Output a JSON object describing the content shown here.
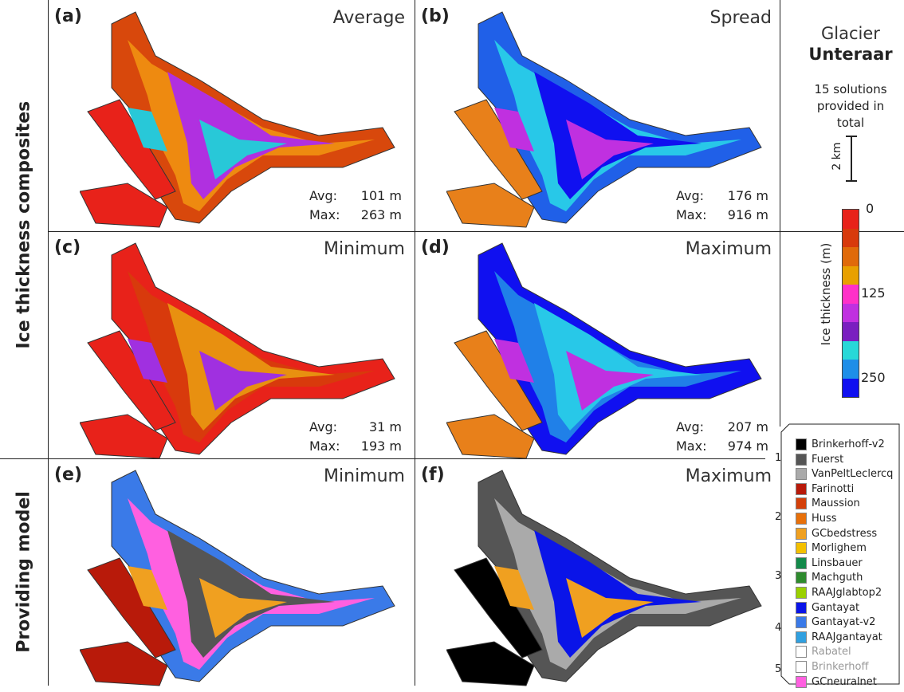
{
  "row_labels": {
    "top": "Ice thickness composites",
    "bottom": "Providing model"
  },
  "panels": [
    {
      "letter": "(a)",
      "title": "Average",
      "avg_label": "Avg:",
      "avg": "101 m",
      "max_label": "Max:",
      "max": "263 m"
    },
    {
      "letter": "(b)",
      "title": "Spread",
      "avg_label": "Avg:",
      "avg": "176 m",
      "max_label": "Max:",
      "max": "916 m"
    },
    {
      "letter": "(c)",
      "title": "Minimum",
      "avg_label": "Avg:",
      "avg": "31 m",
      "max_label": "Max:",
      "max": "193 m"
    },
    {
      "letter": "(d)",
      "title": "Maximum",
      "avg_label": "Avg:",
      "avg": "207 m",
      "max_label": "Max:",
      "max": "974 m"
    },
    {
      "letter": "(e)",
      "title": "Minimum"
    },
    {
      "letter": "(f)",
      "title": "Maximum"
    }
  ],
  "glacier": {
    "line1": "Glacier",
    "line2": "Unteraar",
    "solutions": "15 solutions provided in total"
  },
  "scalebar": {
    "label": "2 km"
  },
  "colorbar": {
    "label": "Ice thickness (m)",
    "ticks": [
      "0",
      "125",
      "250"
    ],
    "colors": [
      "#e8221a",
      "#d83a0c",
      "#e06a0a",
      "#e8a000",
      "#ff30c8",
      "#c030e0",
      "#7a1fc0",
      "#28d8d8",
      "#1e8ee8",
      "#1010f0"
    ]
  },
  "legend": {
    "groups": [
      "1",
      "2",
      "3",
      "4",
      "5"
    ],
    "models": [
      {
        "name": "Brinkerhoff-v2",
        "color": "#000000"
      },
      {
        "name": "Fuerst",
        "color": "#555555"
      },
      {
        "name": "VanPeltLeclercq",
        "color": "#aaaaaa"
      },
      {
        "name": "Farinotti",
        "color": "#b81a0a"
      },
      {
        "name": "Maussion",
        "color": "#d4400a"
      },
      {
        "name": "Huss",
        "color": "#e8700a"
      },
      {
        "name": "GCbedstress",
        "color": "#f0a020"
      },
      {
        "name": "Morlighem",
        "color": "#f4c000"
      },
      {
        "name": "Linsbauer",
        "color": "#138a4a"
      },
      {
        "name": "Machguth",
        "color": "#2e8b2e"
      },
      {
        "name": "RAAJglabtop2",
        "color": "#9ad000"
      },
      {
        "name": "Gantayat",
        "color": "#0a14e8"
      },
      {
        "name": "Gantayat-v2",
        "color": "#3a7ae8"
      },
      {
        "name": "RAAJgantayat",
        "color": "#30a0e0"
      },
      {
        "name": "Rabatel",
        "color": "#ffffff",
        "muted": true
      },
      {
        "name": "Brinkerhoff",
        "color": "#ffffff",
        "muted": true
      },
      {
        "name": "GCneuralnet",
        "color": "#ff60e0"
      }
    ]
  }
}
